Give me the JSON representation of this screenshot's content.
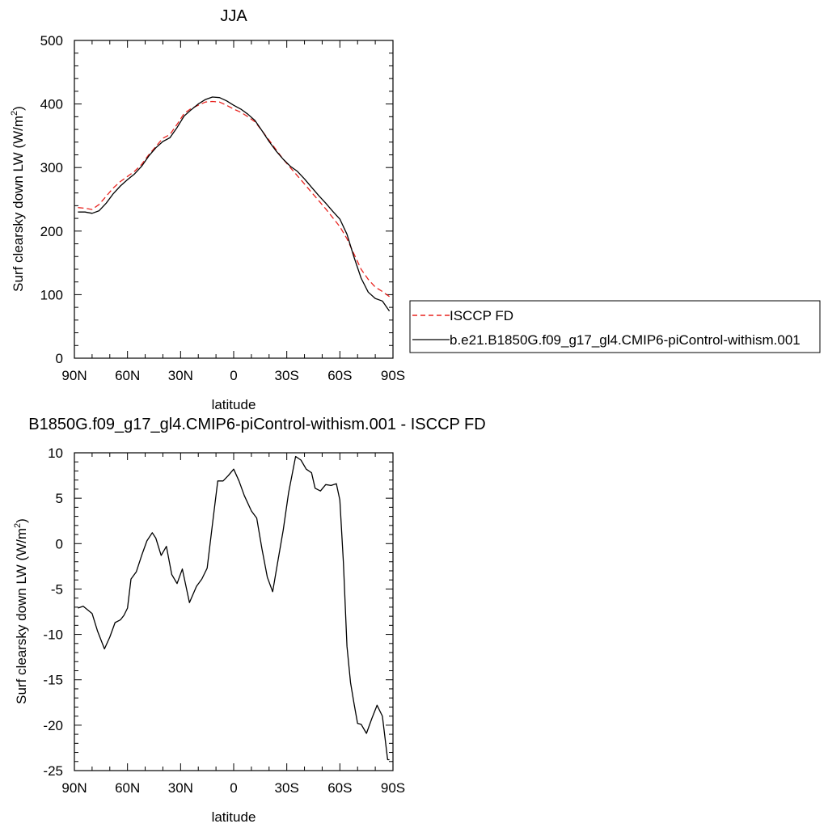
{
  "chart_data": [
    {
      "type": "line",
      "title": "JJA",
      "xlabel": "latitude",
      "ylabel": "Surf clearsky down LW (W/m",
      "ylabel_sup": "2",
      "ylabel_end": ")",
      "xlim": [
        90,
        -90
      ],
      "ylim": [
        0,
        500
      ],
      "x_ticks": [
        90,
        60,
        30,
        0,
        -30,
        -60,
        -90
      ],
      "x_tick_labels": [
        "90N",
        "60N",
        "30N",
        "0",
        "30S",
        "60S",
        "90S"
      ],
      "y_ticks": [
        0,
        100,
        200,
        300,
        400,
        500
      ],
      "y_tick_labels": [
        "0",
        "100",
        "200",
        "300",
        "400",
        "500"
      ],
      "legend_position": "right",
      "series": [
        {
          "name": "ISCCP FD",
          "color": "#e8231f",
          "style": "dashed",
          "x": [
            88,
            84,
            80,
            76,
            72,
            68,
            64,
            60,
            56,
            52,
            48,
            44,
            40,
            36,
            32,
            28,
            24,
            20,
            16,
            12,
            8,
            4,
            0,
            -4,
            -8,
            -12,
            -16,
            -20,
            -24,
            -28,
            -32,
            -36,
            -40,
            -44,
            -48,
            -52,
            -56,
            -60,
            -64,
            -68,
            -72,
            -76,
            -80,
            -84,
            -88
          ],
          "values": [
            237,
            236,
            234,
            242,
            255,
            268,
            278,
            286,
            294,
            305,
            320,
            333,
            346,
            352,
            368,
            385,
            393,
            398,
            403,
            404,
            403,
            398,
            392,
            387,
            380,
            372,
            358,
            343,
            328,
            313,
            300,
            287,
            274,
            261,
            248,
            235,
            221,
            207,
            188,
            164,
            140,
            124,
            112,
            105,
            97
          ]
        },
        {
          "name": "b.e21.B1850G.f09_g17_gl4.CMIP6-piControl-withism.001",
          "color": "#000000",
          "style": "solid",
          "x": [
            88,
            84,
            80,
            76,
            72,
            68,
            64,
            60,
            56,
            52,
            48,
            44,
            40,
            36,
            32,
            28,
            24,
            20,
            16,
            12,
            8,
            4,
            0,
            -4,
            -8,
            -12,
            -16,
            -20,
            -24,
            -28,
            -32,
            -36,
            -40,
            -44,
            -48,
            -52,
            -56,
            -60,
            -64,
            -68,
            -72,
            -76,
            -80,
            -84,
            -88
          ],
          "values": [
            230,
            230,
            228,
            232,
            244,
            259,
            271,
            281,
            290,
            302,
            318,
            331,
            341,
            347,
            363,
            381,
            391,
            400,
            407,
            411,
            410,
            405,
            398,
            392,
            384,
            374,
            358,
            341,
            326,
            313,
            302,
            294,
            282,
            269,
            256,
            244,
            231,
            219,
            195,
            159,
            126,
            104,
            94,
            90,
            74
          ]
        }
      ]
    },
    {
      "type": "line",
      "title": "B1850G.f09_g17_gl4.CMIP6-piControl-withism.001 - ISCCP FD",
      "xlabel": "latitude",
      "ylabel": "Surf clearsky down LW (W/m",
      "ylabel_sup": "2",
      "ylabel_end": ")",
      "xlim": [
        90,
        -90
      ],
      "ylim": [
        -25,
        10
      ],
      "x_ticks": [
        90,
        60,
        30,
        0,
        -30,
        -60,
        -90
      ],
      "x_tick_labels": [
        "90N",
        "60N",
        "30N",
        "0",
        "30S",
        "60S",
        "90S"
      ],
      "y_ticks": [
        -25,
        -20,
        -15,
        -10,
        -5,
        0,
        5,
        10
      ],
      "y_tick_labels": [
        "-25",
        "-20",
        "-15",
        "-10",
        "-5",
        "0",
        "5",
        "10"
      ],
      "series": [
        {
          "name": "",
          "color": "#000000",
          "style": "solid",
          "x": [
            88,
            85,
            80,
            77,
            73,
            70,
            67,
            64,
            62,
            60,
            58,
            55,
            52,
            49,
            46,
            44,
            41,
            38,
            35,
            32,
            29,
            25,
            21,
            18,
            15,
            12,
            9,
            6,
            3,
            0,
            -3,
            -6,
            -10,
            -13,
            -16,
            -19,
            -22,
            -25,
            -28,
            -31,
            -35,
            -38,
            -41,
            -44,
            -46,
            -49,
            -52,
            -55,
            -58,
            -60,
            -62,
            -64,
            -66,
            -68,
            -70,
            -72,
            -75,
            -78,
            -81,
            -84,
            -87,
            -88
          ],
          "values": [
            -7.1,
            -6.9,
            -7.7,
            -9.6,
            -11.6,
            -10.3,
            -8.7,
            -8.4,
            -7.9,
            -7.1,
            -3.9,
            -3.1,
            -1.3,
            0.3,
            1.2,
            0.6,
            -1.3,
            -0.3,
            -3.4,
            -4.4,
            -2.8,
            -6.5,
            -4.7,
            -3.9,
            -2.7,
            2.1,
            6.9,
            6.9,
            7.5,
            8.2,
            6.9,
            5.3,
            3.6,
            2.8,
            -0.6,
            -3.7,
            -5.3,
            -1.9,
            1.5,
            5.6,
            9.6,
            9.2,
            8.2,
            7.8,
            6.1,
            5.8,
            6.5,
            6.4,
            6.6,
            4.8,
            -2.1,
            -11.3,
            -15.3,
            -17.6,
            -19.8,
            -19.9,
            -20.9,
            -19.3,
            -17.8,
            -19.0,
            -23.8,
            -23.8
          ]
        }
      ]
    }
  ]
}
